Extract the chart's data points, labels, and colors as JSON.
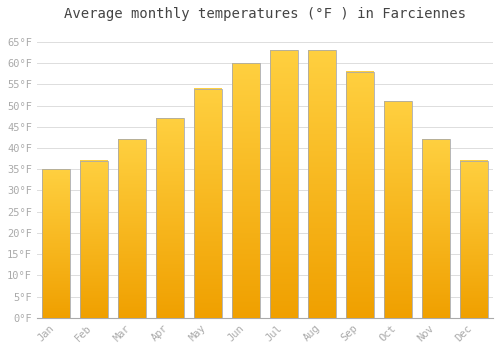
{
  "months": [
    "Jan",
    "Feb",
    "Mar",
    "Apr",
    "May",
    "Jun",
    "Jul",
    "Aug",
    "Sep",
    "Oct",
    "Nov",
    "Dec"
  ],
  "values": [
    35,
    37,
    42,
    47,
    54,
    60,
    63,
    63,
    58,
    51,
    42,
    37
  ],
  "bar_color_bottom": "#F0A000",
  "bar_color_top": "#FFD040",
  "bar_edge_color": "#AAAAAA",
  "title": "Average monthly temperatures (°F ) in Farciennes",
  "title_fontsize": 10,
  "ylim": [
    0,
    68
  ],
  "yticks": [
    0,
    5,
    10,
    15,
    20,
    25,
    30,
    35,
    40,
    45,
    50,
    55,
    60,
    65
  ],
  "ytick_labels": [
    "0°F",
    "5°F",
    "10°F",
    "15°F",
    "20°F",
    "25°F",
    "30°F",
    "35°F",
    "40°F",
    "45°F",
    "50°F",
    "55°F",
    "60°F",
    "65°F"
  ],
  "background_color": "#FFFFFF",
  "grid_color": "#DDDDDD",
  "tick_label_fontsize": 7.5,
  "tick_label_color": "#AAAAAA",
  "bar_width": 0.72
}
